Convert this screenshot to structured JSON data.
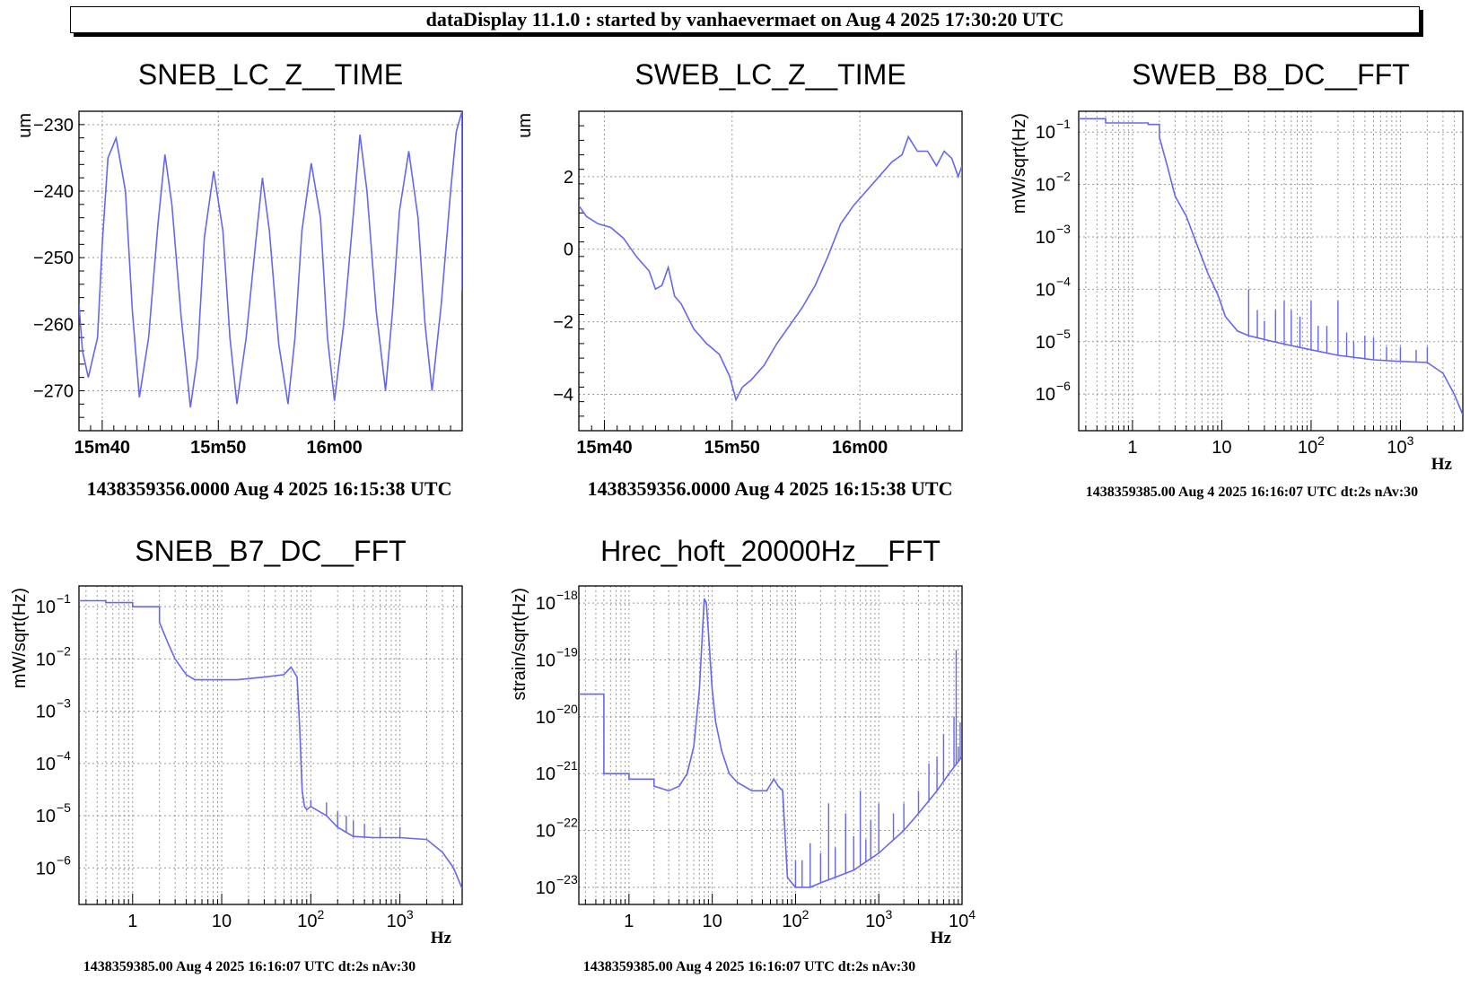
{
  "header": {
    "title": "dataDisplay 11.1.0 : started by vanhaevermaet on Aug  4 2025 17:30:20 UTC"
  },
  "colors": {
    "trace": "#6666ee",
    "grid": "#999999"
  },
  "chart_data": [
    {
      "id": "p1",
      "type": "line",
      "title": "SNEB_LC_Z__TIME",
      "ylabel": "um",
      "xunit": "",
      "footer": "1438359356.0000 Aug 4 2025 16:15:38 UTC",
      "x_scale": "time",
      "y_scale": "linear",
      "xlim": [
        0,
        33
      ],
      "ylim": [
        -276,
        -228
      ],
      "x_ticks": [
        {
          "v": 2,
          "label": "15m40"
        },
        {
          "v": 12,
          "label": "15m50"
        },
        {
          "v": 22,
          "label": "16m00"
        }
      ],
      "y_ticks": [
        {
          "v": -230,
          "label": "−230"
        },
        {
          "v": -240,
          "label": "−240"
        },
        {
          "v": -250,
          "label": "−250"
        },
        {
          "v": -260,
          "label": "−260"
        },
        {
          "v": -270,
          "label": "−270"
        }
      ],
      "series": [
        {
          "x": [
            0,
            0.3,
            0.8,
            1.6,
            2.0,
            2.5,
            3.2,
            4.0,
            4.6,
            5.2,
            6.0,
            6.8,
            7.4,
            8.0,
            8.8,
            9.6,
            10.2,
            10.8,
            11.6,
            12.4,
            13.0,
            13.6,
            14.4,
            15.2,
            15.8,
            16.4,
            17.2,
            18.0,
            18.6,
            19.2,
            20.0,
            20.8,
            21.4,
            22.0,
            22.8,
            23.6,
            24.2,
            24.8,
            25.6,
            26.4,
            27.0,
            27.6,
            28.4,
            29.2,
            29.8,
            30.4,
            31.2,
            32.0,
            32.5,
            32.99,
            33.0,
            33.0
          ],
          "y": [
            -257,
            -264,
            -268,
            -262,
            -248,
            -235,
            -232,
            -240,
            -258,
            -271,
            -262,
            -245,
            -234.5,
            -242,
            -259,
            -272.5,
            -265,
            -247,
            -237,
            -246,
            -262,
            -272,
            -262,
            -248,
            -238,
            -246,
            -263,
            -272,
            -262,
            -246,
            -235.8,
            -244,
            -262,
            -271.5,
            -260,
            -244,
            -231.5,
            -240,
            -258,
            -270,
            -258,
            -243,
            -234,
            -244,
            -260,
            -270,
            -257,
            -240,
            -231,
            -228,
            -252,
            -255
          ]
        }
      ]
    },
    {
      "id": "p2",
      "type": "line",
      "title": "SWEB_LC_Z__TIME",
      "ylabel": "um",
      "xunit": "",
      "footer": "1438359356.0000 Aug 4 2025 16:15:38 UTC",
      "x_scale": "time",
      "y_scale": "linear",
      "xlim": [
        0,
        30
      ],
      "ylim": [
        -5,
        3.8
      ],
      "x_ticks": [
        {
          "v": 2,
          "label": "15m40"
        },
        {
          "v": 12,
          "label": "15m50"
        },
        {
          "v": 22,
          "label": "16m00"
        }
      ],
      "y_ticks": [
        {
          "v": 2,
          "label": "2"
        },
        {
          "v": 0,
          "label": "0"
        },
        {
          "v": -2,
          "label": "−2"
        },
        {
          "v": -4,
          "label": "−4"
        }
      ],
      "series": [
        {
          "x": [
            0,
            0.6,
            1.5,
            2.5,
            3.5,
            4.5,
            5.5,
            6.0,
            6.5,
            7.0,
            7.5,
            8.0,
            9.0,
            10.0,
            11.0,
            11.8,
            12.3,
            12.8,
            13.5,
            14.5,
            15.5,
            16.5,
            17.5,
            18.5,
            19.5,
            20.5,
            21.5,
            22.5,
            23.5,
            24.5,
            25.3,
            25.8,
            26.5,
            27.3,
            28.0,
            28.6,
            29.2,
            29.7,
            30.0,
            30.0
          ],
          "y": [
            1.2,
            0.9,
            0.7,
            0.6,
            0.3,
            -0.2,
            -0.6,
            -1.1,
            -1.0,
            -0.5,
            -1.3,
            -1.5,
            -2.2,
            -2.6,
            -2.9,
            -3.5,
            -4.15,
            -3.8,
            -3.6,
            -3.2,
            -2.6,
            -2.1,
            -1.6,
            -1.0,
            -0.2,
            0.7,
            1.2,
            1.6,
            2.0,
            2.4,
            2.6,
            3.1,
            2.7,
            2.7,
            2.3,
            2.7,
            2.5,
            2.0,
            2.3,
            0
          ]
        }
      ]
    },
    {
      "id": "p3",
      "type": "line",
      "title": "SWEB_B8_DC__FFT",
      "ylabel": "mW/sqrt(Hz)",
      "xunit": "Hz",
      "footer": "1438359385.00 Aug 4 2025 16:16:07 UTC dt:2s nAv:30",
      "x_scale": "log",
      "y_scale": "log",
      "xlim": [
        0.25,
        5000
      ],
      "ylim": [
        2e-07,
        0.25
      ],
      "x_ticks": [
        {
          "v": 1,
          "label": "1"
        },
        {
          "v": 10,
          "label": "10"
        },
        {
          "v": 100,
          "label": "10",
          "exp": "2"
        },
        {
          "v": 1000,
          "label": "10",
          "exp": "3"
        }
      ],
      "y_ticks": [
        {
          "v": 0.1,
          "label": "10",
          "exp": "−1"
        },
        {
          "v": 0.01,
          "label": "10",
          "exp": "−2"
        },
        {
          "v": 0.001,
          "label": "10",
          "exp": "−3"
        },
        {
          "v": 0.0001,
          "label": "10",
          "exp": "−4"
        },
        {
          "v": 1e-05,
          "label": "10",
          "exp": "−5"
        },
        {
          "v": 1e-06,
          "label": "10",
          "exp": "−6"
        }
      ],
      "series": [
        {
          "x": [
            0.25,
            0.5,
            0.5,
            1.5,
            1.5,
            2.0,
            2.0,
            2.5,
            3.0,
            4.0,
            5.0,
            7.0,
            9.0,
            11.0,
            15.0,
            20.0,
            30.0,
            50.0,
            100.0,
            200.0,
            500.0,
            1000.0,
            2000.0,
            3000.0,
            4000.0,
            5000.0
          ],
          "y": [
            0.18,
            0.18,
            0.15,
            0.15,
            0.14,
            0.14,
            0.08,
            0.02,
            0.006,
            0.0025,
            0.0009,
            0.0002,
            8e-05,
            3e-05,
            1.6e-05,
            1.3e-05,
            1.1e-05,
            9e-06,
            7e-06,
            5.5e-06,
            4.5e-06,
            4.2e-06,
            4e-06,
            2.5e-06,
            1e-06,
            4e-07
          ]
        }
      ],
      "spikes": [
        [
          20,
          0.0001
        ],
        [
          25,
          4e-05
        ],
        [
          30,
          2.5e-05
        ],
        [
          40,
          4e-05
        ],
        [
          50,
          6e-05
        ],
        [
          60,
          4e-05
        ],
        [
          75,
          3e-05
        ],
        [
          100,
          6e-05
        ],
        [
          120,
          2e-05
        ],
        [
          150,
          2e-05
        ],
        [
          200,
          6e-05
        ],
        [
          250,
          1.5e-05
        ],
        [
          300,
          1e-05
        ],
        [
          400,
          1.3e-05
        ],
        [
          500,
          1.2e-05
        ],
        [
          700,
          8e-06
        ],
        [
          1000,
          8e-06
        ],
        [
          1500,
          7e-06
        ],
        [
          2000,
          8e-06
        ]
      ]
    },
    {
      "id": "p4",
      "type": "line",
      "title": "SNEB_B7_DC__FFT",
      "ylabel": "mW/sqrt(Hz)",
      "xunit": "Hz",
      "footer": "1438359385.00 Aug 4 2025 16:16:07 UTC dt:2s nAv:30",
      "x_scale": "log",
      "y_scale": "log",
      "xlim": [
        0.25,
        5000
      ],
      "ylim": [
        2e-07,
        0.25
      ],
      "x_ticks": [
        {
          "v": 1,
          "label": "1"
        },
        {
          "v": 10,
          "label": "10"
        },
        {
          "v": 100,
          "label": "10",
          "exp": "2"
        },
        {
          "v": 1000,
          "label": "10",
          "exp": "3"
        }
      ],
      "y_ticks": [
        {
          "v": 0.1,
          "label": "10",
          "exp": "−1"
        },
        {
          "v": 0.01,
          "label": "10",
          "exp": "−2"
        },
        {
          "v": 0.001,
          "label": "10",
          "exp": "−3"
        },
        {
          "v": 0.0001,
          "label": "10",
          "exp": "−4"
        },
        {
          "v": 1e-05,
          "label": "10",
          "exp": "−5"
        },
        {
          "v": 1e-06,
          "label": "10",
          "exp": "−6"
        }
      ],
      "series": [
        {
          "x": [
            0.25,
            0.5,
            0.5,
            1.0,
            1.0,
            2.0,
            2.0,
            2.5,
            3.0,
            4.0,
            5.0,
            8.0,
            15.0,
            30.0,
            50.0,
            60.0,
            70.0,
            75.0,
            80.0,
            85.0,
            90.0,
            100.0,
            150.0,
            200.0,
            300.0,
            500.0,
            1000.0,
            2000.0,
            3000.0,
            4000.0,
            5000.0
          ],
          "y": [
            0.13,
            0.13,
            0.12,
            0.12,
            0.1,
            0.1,
            0.05,
            0.02,
            0.01,
            0.005,
            0.004,
            0.004,
            0.004,
            0.0045,
            0.005,
            0.007,
            0.0045,
            0.0005,
            3e-05,
            1.5e-05,
            1.3e-05,
            1.5e-05,
            1e-05,
            6e-06,
            4e-06,
            3.8e-06,
            3.8e-06,
            3.5e-06,
            2e-06,
            1e-06,
            4e-07
          ]
        }
      ],
      "spikes": [
        [
          100,
          2e-05
        ],
        [
          150,
          1.8e-05
        ],
        [
          200,
          1.2e-05
        ],
        [
          250,
          1e-05
        ],
        [
          300,
          8e-06
        ],
        [
          400,
          7e-06
        ],
        [
          600,
          6e-06
        ],
        [
          1000,
          6e-06
        ]
      ]
    },
    {
      "id": "p5",
      "type": "line",
      "title": "Hrec_hoft_20000Hz__FFT",
      "ylabel": "strain/sqrt(Hz)",
      "xunit": "Hz",
      "footer": "1438359385.00 Aug 4 2025 16:16:07 UTC dt:2s nAv:30",
      "x_scale": "log",
      "y_scale": "log",
      "xlim": [
        0.25,
        10000
      ],
      "ylim": [
        5e-24,
        2e-18
      ],
      "x_ticks": [
        {
          "v": 1,
          "label": "1"
        },
        {
          "v": 10,
          "label": "10"
        },
        {
          "v": 100,
          "label": "10",
          "exp": "2"
        },
        {
          "v": 1000,
          "label": "10",
          "exp": "3"
        },
        {
          "v": 10000,
          "label": "10",
          "exp": "4"
        }
      ],
      "y_ticks": [
        {
          "v": 1e-18,
          "label": "10",
          "exp": "−18"
        },
        {
          "v": 1e-19,
          "label": "10",
          "exp": "−19"
        },
        {
          "v": 1e-20,
          "label": "10",
          "exp": "−20"
        },
        {
          "v": 1e-21,
          "label": "10",
          "exp": "−21"
        },
        {
          "v": 1e-22,
          "label": "10",
          "exp": "−22"
        },
        {
          "v": 1e-23,
          "label": "10",
          "exp": "−23"
        }
      ],
      "series": [
        {
          "x": [
            0.25,
            0.5,
            0.5,
            1.0,
            1.0,
            2.0,
            2.0,
            3.0,
            4.0,
            5.0,
            6.0,
            7.0,
            7.5,
            8.0,
            8.5,
            9.0,
            10.0,
            11.0,
            13.0,
            16.0,
            20.0,
            30.0,
            45.0,
            55.0,
            62.0,
            70.0,
            80.0,
            90.0,
            100.0,
            150.0,
            200.0,
            300.0,
            500.0,
            1000.0,
            2000.0,
            3000.0,
            5000.0,
            7000.0,
            10000.0
          ],
          "y": [
            2.5e-20,
            2.5e-20,
            1e-21,
            1e-21,
            8e-22,
            8e-22,
            6e-22,
            5e-22,
            6e-22,
            1e-21,
            3e-21,
            3e-20,
            2e-19,
            1.2e-18,
            1e-18,
            3e-19,
            3e-20,
            8e-21,
            2.5e-21,
            1e-21,
            7e-22,
            5e-22,
            5e-22,
            8e-22,
            6e-22,
            5e-22,
            1.5e-23,
            1.2e-23,
            1e-23,
            1e-23,
            1.2e-23,
            1.5e-23,
            2e-23,
            4e-23,
            1e-22,
            2e-22,
            5e-22,
            1e-21,
            2e-21
          ]
        }
      ],
      "spikes": [
        [
          100,
          3e-23
        ],
        [
          120,
          3e-23
        ],
        [
          150,
          6e-23
        ],
        [
          200,
          4e-23
        ],
        [
          250,
          3e-22
        ],
        [
          300,
          5e-23
        ],
        [
          400,
          2e-22
        ],
        [
          500,
          8e-23
        ],
        [
          600,
          5e-22
        ],
        [
          700,
          7e-23
        ],
        [
          800,
          1.5e-22
        ],
        [
          1000,
          3e-22
        ],
        [
          1500,
          2e-22
        ],
        [
          2000,
          3e-22
        ],
        [
          3000,
          5e-22
        ],
        [
          4000,
          1.5e-21
        ],
        [
          5000,
          2e-21
        ],
        [
          6000,
          5e-21
        ],
        [
          8000,
          1e-20
        ],
        [
          8500,
          1.5e-19
        ],
        [
          9000,
          3e-21
        ],
        [
          9500,
          8e-21
        ]
      ]
    }
  ]
}
